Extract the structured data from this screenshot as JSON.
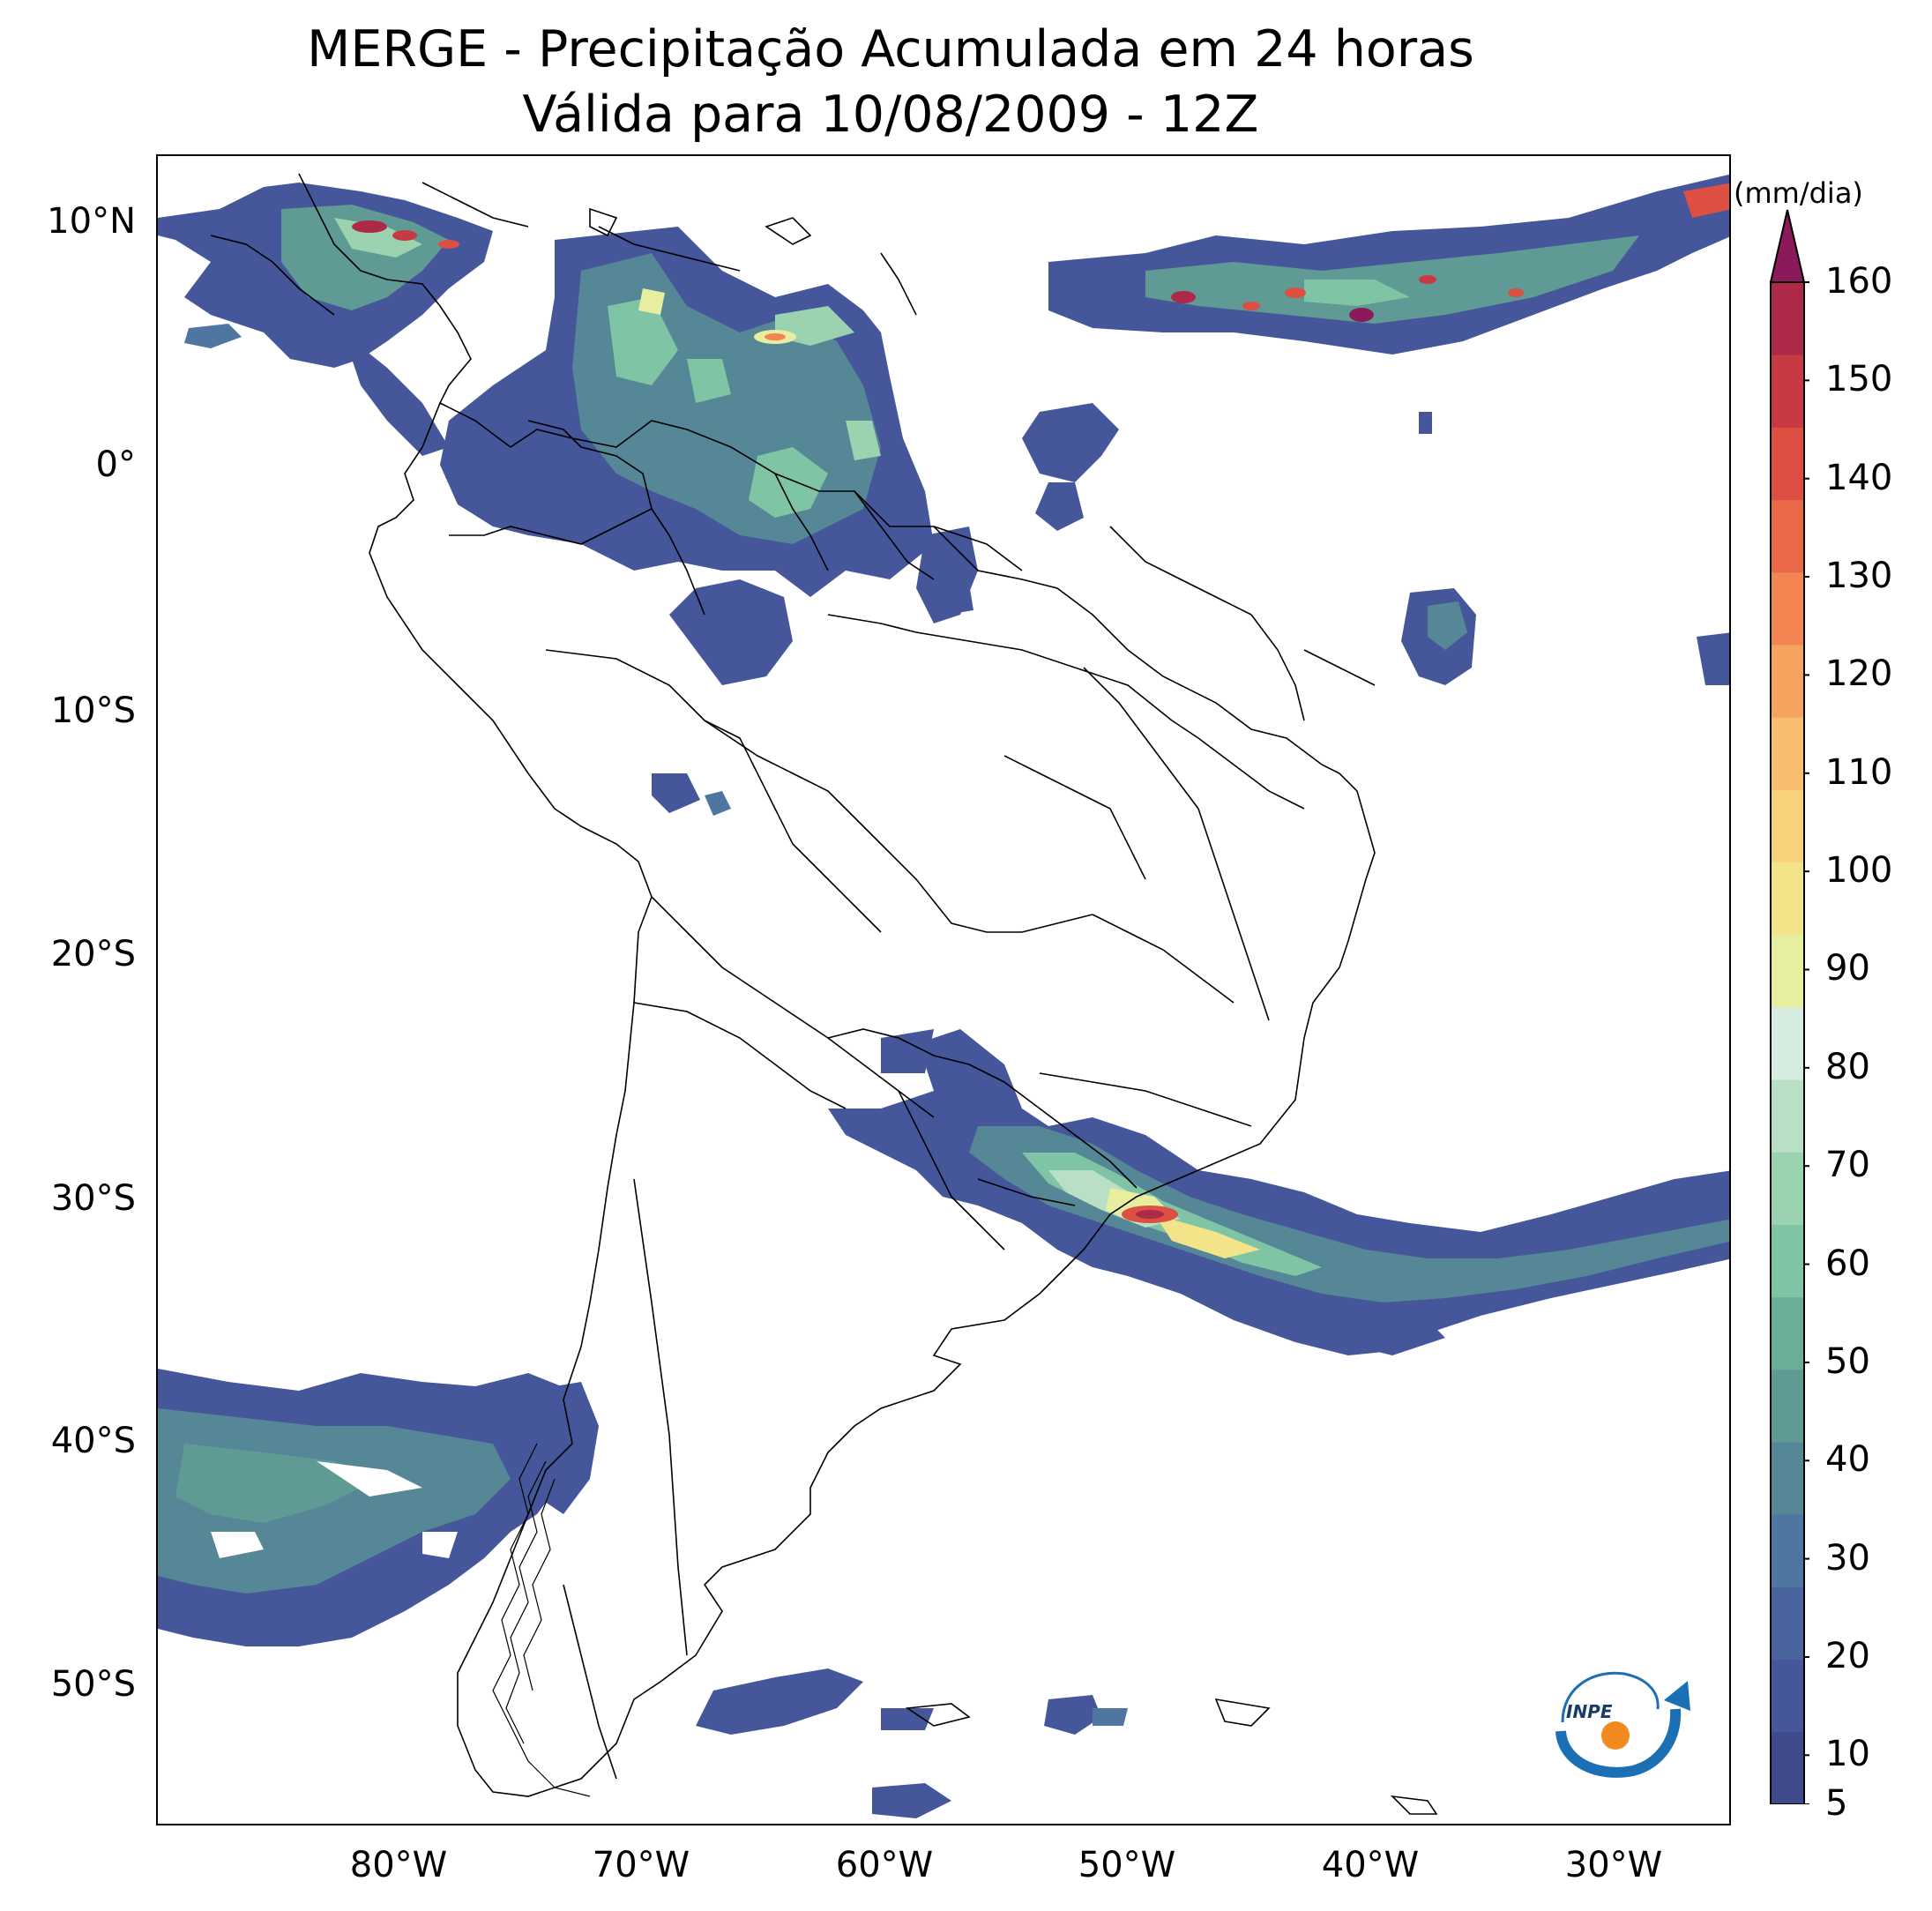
{
  "title": {
    "line1": "MERGE - Precipitação Acumulada em 24 horas",
    "line2": "Válida para 10/08/2009 - 12Z"
  },
  "axes": {
    "lat_labels": [
      "10°N",
      "0°",
      "10°S",
      "20°S",
      "30°S",
      "40°S",
      "50°S"
    ],
    "lon_labels": [
      "80°W",
      "70°W",
      "60°W",
      "50°W",
      "40°W",
      "30°W"
    ]
  },
  "colorbar": {
    "unit": "(mm/dia)",
    "ticks": [
      "5",
      "10",
      "20",
      "30",
      "40",
      "50",
      "60",
      "70",
      "80",
      "90",
      "100",
      "110",
      "120",
      "130",
      "140",
      "150",
      "160"
    ],
    "extend": "max",
    "colors": [
      "#3f4a8a",
      "#46569a",
      "#4a659e",
      "#4f76a0",
      "#568796",
      "#5f9a94",
      "#6bae98",
      "#7fc4a4",
      "#9bd3b0",
      "#b9e0c4",
      "#d6ece0",
      "#e8eea0",
      "#f3e48a",
      "#f7d27a",
      "#f8bd6e",
      "#f6a35f",
      "#f28552",
      "#e96848",
      "#dc4f42",
      "#c73a44",
      "#ac2a47",
      "#8a1a5a"
    ]
  },
  "logo": {
    "text": "INPE",
    "colors": {
      "blue": "#1a6fb5",
      "orange": "#f08a1c"
    }
  }
}
